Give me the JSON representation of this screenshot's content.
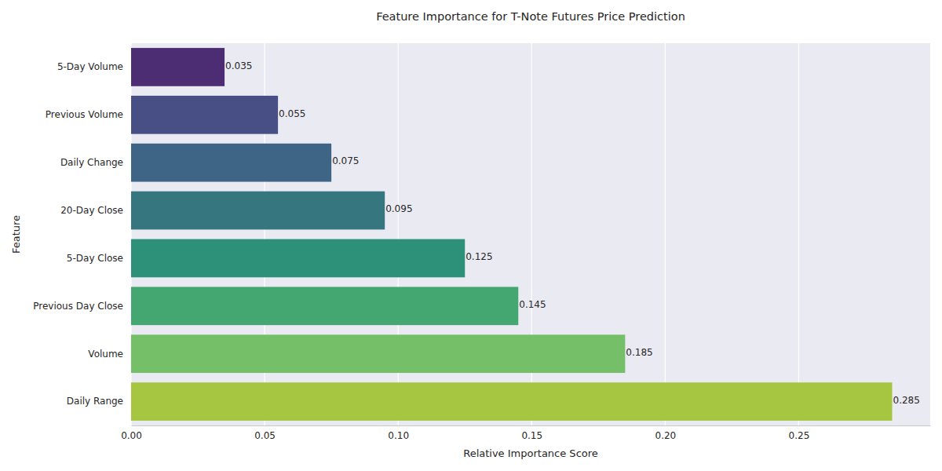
{
  "chart_data": {
    "type": "bar",
    "orientation": "horizontal",
    "title": "Feature Importance for T-Note Futures Price Prediction",
    "x_label": "Relative Importance Score",
    "y_label": "Feature",
    "categories": [
      "5-Day Volume",
      "Previous Volume",
      "Daily Change",
      "20-Day Close",
      "5-Day Close",
      "Previous Day Close",
      "Volume",
      "Daily Range"
    ],
    "values": [
      0.035,
      0.055,
      0.075,
      0.095,
      0.125,
      0.145,
      0.185,
      0.285
    ],
    "colors": [
      "#4c2c73",
      "#474f85",
      "#3e6585",
      "#36777f",
      "#2d9079",
      "#44a772",
      "#74bf68",
      "#a6c541"
    ],
    "xlim": [
      0,
      0.29925
    ],
    "xticks": [
      {
        "value": 0,
        "label": "0.00"
      },
      {
        "value": 0.05,
        "label": "0.05"
      },
      {
        "value": 0.1,
        "label": "0.10"
      },
      {
        "value": 0.15,
        "label": "0.15"
      },
      {
        "value": 0.2,
        "label": "0.20"
      },
      {
        "value": 0.25,
        "label": "0.25"
      }
    ],
    "grid": true,
    "data_labels": true
  }
}
